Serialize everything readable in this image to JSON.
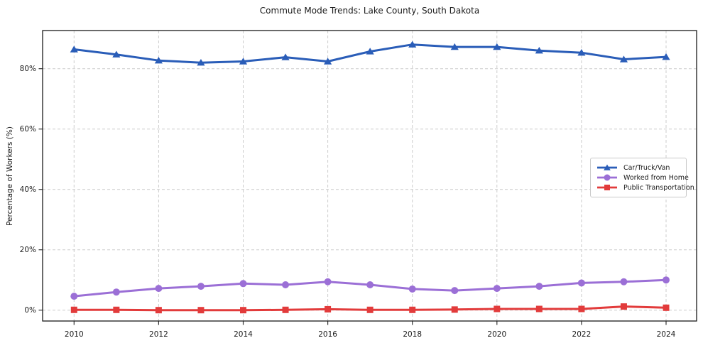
{
  "chart_data": {
    "type": "line",
    "title": "Commute Mode Trends: Lake County, South Dakota",
    "ylabel": "Percentage of Workers (%)",
    "xlabel": "",
    "x": [
      2010,
      2011,
      2012,
      2013,
      2014,
      2015,
      2016,
      2017,
      2018,
      2019,
      2020,
      2021,
      2022,
      2023,
      2024
    ],
    "xtick_labels": [
      "2010",
      "2012",
      "2014",
      "2016",
      "2018",
      "2020",
      "2022",
      "2024"
    ],
    "xticks": [
      2010,
      2012,
      2014,
      2016,
      2018,
      2020,
      2022,
      2024
    ],
    "ytick_labels": [
      "0%",
      "20%",
      "40%",
      "60%",
      "80%"
    ],
    "yticks": [
      0,
      20,
      40,
      60,
      80
    ],
    "ylim": [
      -3.6,
      92.6
    ],
    "grid": true,
    "legend_position": "center-right",
    "series": [
      {
        "name": "Car/Truck/Van",
        "color": "#2a5db8",
        "marker": "triangle",
        "values": [
          86.4,
          84.7,
          82.7,
          82.0,
          82.4,
          83.8,
          82.4,
          85.7,
          88.0,
          87.2,
          87.2,
          86.0,
          85.3,
          83.1,
          83.9
        ]
      },
      {
        "name": "Worked from Home",
        "color": "#9b6fd6",
        "marker": "circle",
        "values": [
          4.6,
          6.0,
          7.2,
          7.9,
          8.8,
          8.4,
          9.4,
          8.4,
          7.0,
          6.5,
          7.2,
          7.9,
          9.0,
          9.4,
          10.0
        ]
      },
      {
        "name": "Public Transportation",
        "color": "#e23b3b",
        "marker": "square",
        "values": [
          0.1,
          0.1,
          0.0,
          0.0,
          0.0,
          0.1,
          0.3,
          0.1,
          0.1,
          0.2,
          0.4,
          0.4,
          0.4,
          1.2,
          0.8
        ]
      }
    ]
  },
  "colors": {
    "grid": "#cccccc",
    "frame": "#1a1a1a",
    "tick": "#333333",
    "tick_text": "#1a1a1a",
    "background": "#ffffff"
  }
}
